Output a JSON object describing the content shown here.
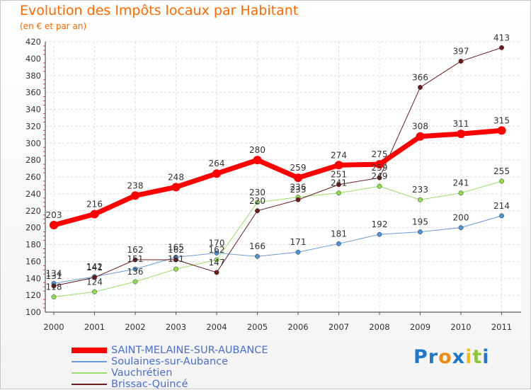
{
  "title": "Evolution des Impôts locaux par Habitant",
  "subtitle": "(en € et par an)",
  "logo": {
    "parts": [
      "Pr",
      "o",
      "x",
      "i",
      "t",
      "i"
    ],
    "colors": [
      "#1f78c8",
      "#f08a10",
      "#1f78c8",
      "#f0c010",
      "#8cc63f",
      "#1f78c8"
    ]
  },
  "chart_data": {
    "type": "line",
    "x": [
      "2000",
      "2001",
      "2002",
      "2003",
      "2004",
      "2005",
      "2006",
      "2007",
      "2008",
      "2009",
      "2010",
      "2011"
    ],
    "yticks": [
      100,
      120,
      140,
      160,
      180,
      200,
      220,
      240,
      260,
      280,
      300,
      320,
      340,
      360,
      380,
      400,
      420
    ],
    "ylim": [
      100,
      420
    ],
    "grid": true,
    "legend_position": "bottom-left",
    "series": [
      {
        "name": "SAINT-MELAINE-SUR-AUBANCE",
        "color": "#ff0000",
        "marker": "#ff0000",
        "width": 7,
        "values": [
          203,
          216,
          238,
          248,
          264,
          280,
          259,
          274,
          275,
          308,
          311,
          315
        ]
      },
      {
        "name": "Soulaines-sur-Aubance",
        "color": "#6a9bd8",
        "marker": "#4f93d6",
        "width": 1,
        "values": [
          134,
          142,
          151,
          165,
          170,
          166,
          171,
          181,
          192,
          195,
          200,
          214
        ]
      },
      {
        "name": "Vauchrétien",
        "color": "#9adf6a",
        "marker": "#8fdd4f",
        "width": 1,
        "values": [
          118,
          124,
          136,
          151,
          162,
          230,
          236,
          241,
          249,
          233,
          241,
          255
        ]
      },
      {
        "name": "Brissac-Quincé",
        "color": "#6b1e22",
        "marker": "#6b1a1a",
        "width": 1,
        "values": [
          131,
          141,
          162,
          162,
          147,
          220,
          233,
          251,
          259,
          366,
          397,
          413
        ]
      }
    ]
  }
}
